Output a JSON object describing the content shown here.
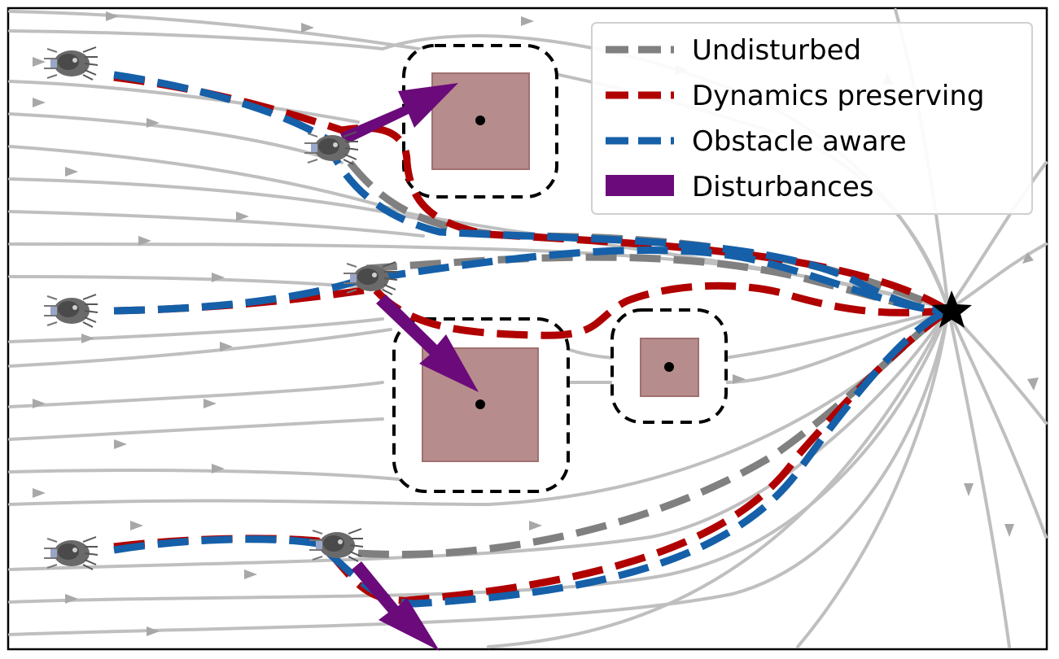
{
  "legend": {
    "items": [
      {
        "label": "Undisturbed",
        "color": "#808080",
        "style": "dashed"
      },
      {
        "label": "Dynamics preserving",
        "color": "#b00000",
        "style": "dashed"
      },
      {
        "label": "Obstacle aware",
        "color": "#1560a8",
        "style": "dashed"
      },
      {
        "label": "Disturbances",
        "color": "#6b0a7a",
        "style": "solid"
      }
    ]
  },
  "colors": {
    "streamline": "#bfbfbf",
    "obstacle_fill": "#b78c8c",
    "obstacle_border": "#000000",
    "disturbance": "#6b0a7a",
    "target": "#000000"
  },
  "icons": {
    "target": "star-icon",
    "robot": "quadruped-robot-icon"
  }
}
